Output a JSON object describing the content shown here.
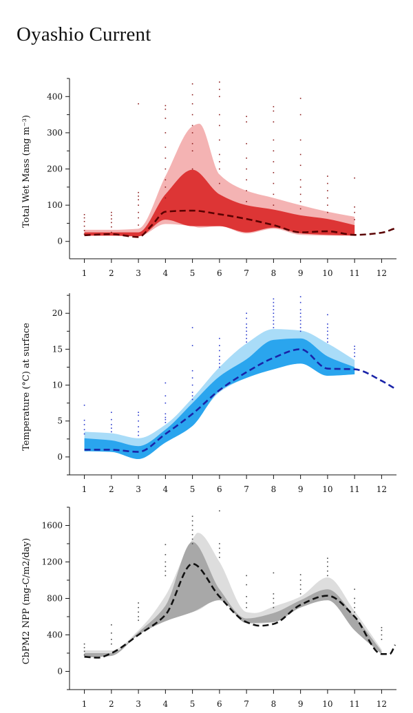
{
  "page": {
    "title": "Oyashio Current"
  },
  "colors": {
    "mass": {
      "outer": "#f4b3b3",
      "inner": "#dd3535",
      "median": "#5a0000",
      "dots": "#8b1a1a"
    },
    "temp": {
      "outer": "#a9dcf8",
      "inner": "#2aa5ee",
      "median": "#1a24a8",
      "dots": "#2233cc"
    },
    "npp": {
      "outer": "#dddddd",
      "inner": "#a8a8a8",
      "median": "#111111",
      "dots": "#444444"
    }
  },
  "chart_data": [
    {
      "id": "mass",
      "type": "area",
      "ylabel": "Total Wet Mass (mg m⁻³)",
      "xlim": [
        0.45,
        12.55
      ],
      "ylim": [
        -48,
        450
      ],
      "xticks": [
        1,
        2,
        3,
        4,
        5,
        6,
        7,
        8,
        9,
        10,
        11,
        12
      ],
      "yticks": [
        0,
        100,
        200,
        300,
        400
      ],
      "series": [
        {
          "role": "outer",
          "x": [
            1,
            2,
            3,
            4,
            5,
            5.25,
            6,
            7,
            8,
            9,
            10,
            11
          ],
          "lo": [
            16,
            16,
            14,
            48,
            42,
            38,
            42,
            22,
            35,
            18,
            16,
            16
          ],
          "hi": [
            32,
            32,
            35,
            180,
            318,
            325,
            185,
            140,
            120,
            100,
            82,
            68
          ]
        },
        {
          "role": "inner",
          "x": [
            1,
            2,
            3,
            4,
            5,
            6,
            7,
            8,
            9,
            10,
            11
          ],
          "lo": [
            16,
            16,
            14,
            60,
            42,
            42,
            25,
            38,
            22,
            18,
            16
          ],
          "hi": [
            25,
            25,
            25,
            130,
            198,
            130,
            100,
            88,
            72,
            62,
            45
          ]
        },
        {
          "role": "median",
          "x": [
            1,
            2,
            3,
            3.5,
            4,
            5,
            6,
            7,
            8,
            9,
            10,
            11,
            12,
            12.5
          ],
          "y": [
            17,
            20,
            12,
            45,
            82,
            85,
            75,
            62,
            45,
            25,
            28,
            18,
            24,
            36
          ]
        }
      ],
      "observations": [
        [
          1,
          [
            20,
            30,
            42,
            55,
            65,
            74
          ]
        ],
        [
          2,
          [
            25,
            40,
            52,
            62,
            72,
            80
          ]
        ],
        [
          3,
          [
            45,
            65,
            80,
            100,
            115,
            125,
            135,
            380
          ]
        ],
        [
          4,
          [
            120,
            150,
            170,
            200,
            230,
            260,
            300,
            340,
            365,
            375
          ]
        ],
        [
          5,
          [
            200,
            250,
            270,
            300,
            320,
            350,
            380,
            405,
            435
          ]
        ],
        [
          6,
          [
            160,
            200,
            220,
            240,
            280,
            320,
            350,
            400,
            420,
            440
          ]
        ],
        [
          7,
          [
            110,
            140,
            170,
            200,
            230,
            270,
            330,
            345
          ]
        ],
        [
          8,
          [
            100,
            130,
            160,
            190,
            220,
            250,
            280,
            330,
            360,
            372
          ]
        ],
        [
          9,
          [
            90,
            110,
            130,
            150,
            170,
            210,
            240,
            280,
            350,
            395
          ]
        ],
        [
          10,
          [
            80,
            100,
            120,
            140,
            160,
            180
          ]
        ],
        [
          11,
          [
            60,
            80,
            95,
            175
          ]
        ]
      ]
    },
    {
      "id": "temp",
      "type": "area",
      "ylabel": "Temperature (°C) at surface",
      "xlim": [
        0.45,
        12.55
      ],
      "ylim": [
        -2.5,
        22.8
      ],
      "xticks": [
        1,
        2,
        3,
        4,
        5,
        6,
        7,
        8,
        9,
        10,
        11,
        12
      ],
      "yticks": [
        0,
        5,
        10,
        15,
        20
      ],
      "series": [
        {
          "role": "outer",
          "x": [
            1,
            2,
            3,
            4,
            5,
            6,
            7,
            8,
            9,
            10,
            11
          ],
          "lo": [
            0.8,
            0.7,
            0.2,
            2.0,
            4.5,
            9.0,
            11.0,
            12.2,
            13.0,
            11.3,
            11.5
          ],
          "hi": [
            3.5,
            3.3,
            2.6,
            4.5,
            8.2,
            12.5,
            15.8,
            17.8,
            17.6,
            15.8,
            13.5
          ]
        },
        {
          "role": "inner",
          "x": [
            1,
            2,
            3,
            4,
            5,
            6,
            7,
            8,
            9,
            10,
            11
          ],
          "lo": [
            0.8,
            0.7,
            -0.3,
            2.0,
            4.3,
            9.2,
            11.0,
            12.2,
            13.0,
            11.3,
            11.5
          ],
          "hi": [
            2.6,
            2.3,
            1.5,
            3.8,
            7.5,
            11.2,
            13.6,
            16.3,
            16.5,
            14.0,
            12.5
          ]
        },
        {
          "role": "median",
          "x": [
            1,
            2,
            3,
            4,
            5,
            6,
            7,
            8,
            9,
            10,
            11,
            12,
            12.5
          ],
          "y": [
            1.0,
            1.0,
            0.7,
            3.2,
            6.0,
            9.3,
            11.8,
            13.8,
            15.0,
            12.3,
            12.2,
            10.6,
            9.5
          ]
        }
      ],
      "observations": [
        [
          1,
          [
            3.2,
            3.8,
            4.5,
            5.1,
            7.2
          ]
        ],
        [
          2,
          [
            3.5,
            4.0,
            4.5,
            5.2,
            6.2
          ]
        ],
        [
          3,
          [
            3.0,
            3.5,
            4.2,
            5.0,
            5.8,
            6.2
          ]
        ],
        [
          4,
          [
            4.8,
            5.2,
            5.5,
            6.0,
            7.5,
            8.5,
            10.3
          ]
        ],
        [
          5,
          [
            8.0,
            8.5,
            9.0,
            10.0,
            11.0,
            12.0,
            15.5,
            18.0
          ]
        ],
        [
          6,
          [
            12.5,
            13.0,
            13.5,
            14.0,
            14.8,
            15.5,
            16.5
          ]
        ],
        [
          7,
          [
            16.0,
            16.5,
            17.0,
            17.5,
            18.0,
            18.5,
            19.3,
            20.0
          ]
        ],
        [
          8,
          [
            18.0,
            18.5,
            19.0,
            19.5,
            20.0,
            20.5,
            21.0,
            21.5,
            22.0
          ]
        ],
        [
          9,
          [
            17.5,
            18.0,
            18.5,
            19.0,
            19.5,
            20.0,
            20.5,
            21.5,
            22.3
          ]
        ],
        [
          10,
          [
            16.0,
            16.5,
            17.0,
            17.5,
            18.0,
            18.5,
            19.8
          ]
        ],
        [
          11,
          [
            14.0,
            14.5,
            15.0,
            15.4
          ]
        ]
      ]
    },
    {
      "id": "npp",
      "type": "area",
      "ylabel": "CbPM2 NPP (mg-C/m2/day)",
      "xlim": [
        0.45,
        12.55
      ],
      "ylim": [
        -200,
        1800
      ],
      "xticks": [
        1,
        2,
        3,
        4,
        5,
        6,
        7,
        8,
        9,
        10,
        11,
        12
      ],
      "yticks": [
        0,
        400,
        800,
        1200,
        1600
      ],
      "series": [
        {
          "role": "outer",
          "x": [
            1,
            2,
            3,
            4,
            5,
            5.2,
            6,
            7,
            7.3,
            8,
            9,
            10,
            11,
            12
          ],
          "lo": [
            150,
            170,
            400,
            550,
            650,
            670,
            800,
            530,
            520,
            540,
            700,
            780,
            450,
            190
          ],
          "hi": [
            230,
            230,
            450,
            830,
            1450,
            1520,
            1200,
            650,
            640,
            710,
            820,
            1030,
            660,
            240
          ]
        },
        {
          "role": "inner",
          "x": [
            1,
            2,
            3,
            4,
            5,
            6,
            7,
            8,
            9,
            10,
            11,
            12
          ],
          "lo": [
            150,
            170,
            400,
            550,
            650,
            780,
            530,
            540,
            700,
            780,
            450,
            190
          ],
          "hi": [
            200,
            200,
            430,
            720,
            1420,
            900,
            580,
            640,
            780,
            900,
            600,
            220
          ]
        },
        {
          "role": "median",
          "x": [
            1,
            1.5,
            2,
            3,
            4,
            5,
            6,
            7,
            7.5,
            8,
            9,
            10,
            11,
            12,
            12.3,
            12.5
          ],
          "y": [
            160,
            150,
            200,
            400,
            620,
            1180,
            820,
            540,
            500,
            520,
            730,
            830,
            600,
            190,
            190,
            290
          ]
        }
      ],
      "observations": [
        [
          1,
          [
            180,
            220,
            260,
            300
          ]
        ],
        [
          2,
          [
            300,
            350,
            420,
            510
          ]
        ],
        [
          3,
          [
            560,
            600,
            650,
            700,
            750
          ]
        ],
        [
          4,
          [
            1050,
            1100,
            1150,
            1200,
            1280,
            1390
          ]
        ],
        [
          5,
          [
            1400,
            1450,
            1500,
            1550,
            1600,
            1650,
            1700
          ]
        ],
        [
          6,
          [
            1250,
            1300,
            1350,
            1400,
            1760
          ]
        ],
        [
          7,
          [
            700,
            750,
            820,
            950,
            1050
          ]
        ],
        [
          8,
          [
            700,
            750,
            800,
            850,
            1080
          ]
        ],
        [
          9,
          [
            850,
            900,
            950,
            1000,
            1060
          ]
        ],
        [
          10,
          [
            1050,
            1100,
            1150,
            1200,
            1240
          ]
        ],
        [
          11,
          [
            600,
            650,
            700,
            750,
            800,
            900
          ]
        ],
        [
          12,
          [
            350,
            400,
            450,
            480
          ]
        ]
      ]
    }
  ]
}
